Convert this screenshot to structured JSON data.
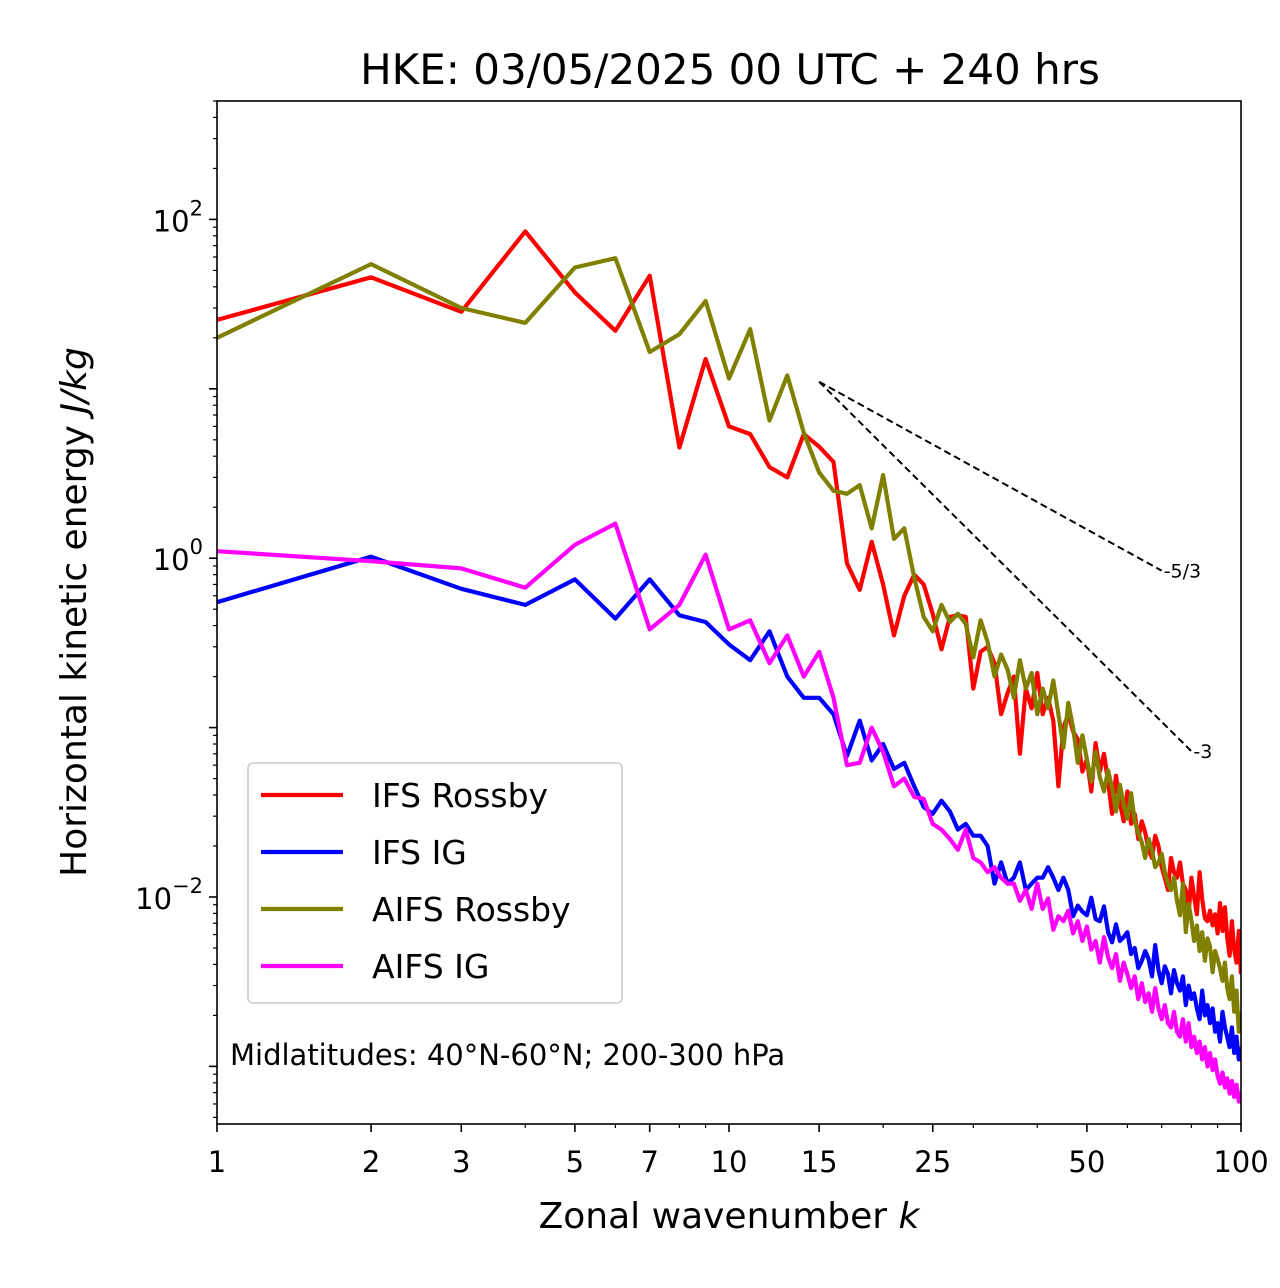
{
  "chart_data": {
    "type": "line",
    "title": "HKE: 03/05/2025 00 UTC + 240 hrs",
    "xlabel": "Zonal wavenumber k",
    "ylabel": "Horizontal kinetic energy J/kg",
    "xscale": "log",
    "yscale": "log",
    "xlim": [
      1,
      100
    ],
    "ylim": [
      0.000457,
      500
    ],
    "x_ticks": [
      1,
      2,
      3,
      5,
      7,
      10,
      15,
      25,
      50,
      100
    ],
    "x_tick_labels": [
      "1",
      "2",
      "3",
      "5",
      "7",
      "10",
      "15",
      "25",
      "50",
      "100"
    ],
    "y_ticks": [
      0.01,
      1,
      100
    ],
    "y_tick_labels": [
      {
        "base": "10",
        "exp": "−2"
      },
      {
        "base": "10",
        "exp": "0"
      },
      {
        "base": "10",
        "exp": "2"
      }
    ],
    "annotation": "Midlatitudes: 40°N-60°N; 200-300 hPa",
    "legend_position": "lower-left",
    "grid": false,
    "reference_lines": [
      {
        "label": "-5/3",
        "slope": -1.6667,
        "x_start": 15,
        "y_start": 11.0,
        "x_end": 70
      },
      {
        "label": "-3",
        "slope": -3,
        "x_start": 15,
        "y_start": 11.0,
        "x_end": 80
      }
    ],
    "series": [
      {
        "name": "IFS Rossby",
        "color": "#ff0000",
        "x": [
          1,
          2,
          3,
          4,
          5,
          6,
          7,
          8,
          9,
          10,
          11,
          12,
          13,
          14,
          15,
          16,
          17,
          18,
          19,
          20,
          21,
          22,
          23,
          24,
          25,
          26,
          27,
          28,
          29,
          30,
          31,
          32,
          33,
          34,
          35,
          36,
          37,
          38,
          39,
          40,
          41,
          42,
          43,
          44,
          45,
          46,
          47,
          48,
          49,
          50,
          51,
          52,
          53,
          54,
          55,
          56,
          57,
          58,
          59,
          60,
          61,
          62,
          63,
          64,
          65,
          66,
          67,
          68,
          69,
          70,
          71,
          72,
          73,
          74,
          75,
          76,
          77,
          78,
          79,
          80,
          81,
          82,
          83,
          84,
          85,
          86,
          87,
          88,
          89,
          90,
          91,
          92,
          93,
          94,
          95,
          96,
          97,
          98,
          99,
          100
        ],
        "y": [
          25.5,
          45.5,
          28.5,
          85.0,
          37.0,
          22.0,
          46.5,
          4.5,
          15.0,
          6.0,
          5.4,
          3.45,
          3.0,
          5.4,
          4.55,
          3.7,
          0.93,
          0.65,
          1.25,
          0.7,
          0.35,
          0.6,
          0.8,
          0.7,
          0.47,
          0.29,
          0.45,
          0.46,
          0.45,
          0.17,
          0.28,
          0.3,
          0.24,
          0.12,
          0.16,
          0.2,
          0.07,
          0.17,
          0.13,
          0.21,
          0.12,
          0.15,
          0.11,
          0.045,
          0.1,
          0.12,
          0.095,
          0.085,
          0.055,
          0.065,
          0.042,
          0.081,
          0.055,
          0.07,
          0.048,
          0.031,
          0.052,
          0.036,
          0.028,
          0.042,
          0.027,
          0.031,
          0.022,
          0.028,
          0.024,
          0.019,
          0.017,
          0.023,
          0.02,
          0.015,
          0.013,
          0.011,
          0.017,
          0.014,
          0.013,
          0.016,
          0.012,
          0.011,
          0.008,
          0.013,
          0.01,
          0.0079,
          0.014,
          0.0097,
          0.0075,
          0.0072,
          0.0083,
          0.0068,
          0.0079,
          0.0061,
          0.0092,
          0.0063,
          0.0087,
          0.0058,
          0.0045,
          0.0072,
          0.0049,
          0.0041,
          0.0063,
          0.0035
        ]
      },
      {
        "name": "IFS IG",
        "color": "#0000ff",
        "x": [
          1,
          2,
          3,
          4,
          5,
          6,
          7,
          8,
          9,
          10,
          11,
          12,
          13,
          14,
          15,
          16,
          17,
          18,
          19,
          20,
          21,
          22,
          23,
          24,
          25,
          26,
          27,
          28,
          29,
          30,
          31,
          32,
          33,
          34,
          35,
          36,
          37,
          38,
          39,
          40,
          41,
          42,
          43,
          44,
          45,
          46,
          47,
          48,
          49,
          50,
          51,
          52,
          53,
          54,
          55,
          56,
          57,
          58,
          59,
          60,
          61,
          62,
          63,
          64,
          65,
          66,
          67,
          68,
          69,
          70,
          71,
          72,
          73,
          74,
          75,
          76,
          77,
          78,
          79,
          80,
          81,
          82,
          83,
          84,
          85,
          86,
          87,
          88,
          89,
          90,
          91,
          92,
          93,
          94,
          95,
          96,
          97,
          98,
          99,
          100
        ],
        "y": [
          0.55,
          1.02,
          0.66,
          0.53,
          0.75,
          0.44,
          0.75,
          0.46,
          0.42,
          0.31,
          0.25,
          0.37,
          0.2,
          0.15,
          0.15,
          0.12,
          0.068,
          0.11,
          0.064,
          0.08,
          0.057,
          0.062,
          0.045,
          0.034,
          0.031,
          0.037,
          0.032,
          0.025,
          0.027,
          0.023,
          0.023,
          0.02,
          0.012,
          0.016,
          0.012,
          0.013,
          0.016,
          0.011,
          0.012,
          0.013,
          0.013,
          0.015,
          0.013,
          0.011,
          0.013,
          0.011,
          0.0077,
          0.0089,
          0.0082,
          0.0078,
          0.0099,
          0.0074,
          0.0072,
          0.0088,
          0.0062,
          0.0054,
          0.0069,
          0.0055,
          0.0058,
          0.0062,
          0.0046,
          0.005,
          0.0038,
          0.0042,
          0.0048,
          0.0043,
          0.0034,
          0.0052,
          0.0037,
          0.0031,
          0.0039,
          0.0035,
          0.0027,
          0.0037,
          0.0031,
          0.0028,
          0.0034,
          0.0023,
          0.003,
          0.0025,
          0.0027,
          0.0022,
          0.0019,
          0.0028,
          0.002,
          0.0023,
          0.0018,
          0.0022,
          0.0016,
          0.0018,
          0.0014,
          0.0021,
          0.0017,
          0.0015,
          0.0013,
          0.0017,
          0.0012,
          0.0015,
          0.0011,
          0.0013
        ]
      },
      {
        "name": "AIFS Rossby",
        "color": "#808000",
        "x": [
          1,
          2,
          3,
          4,
          5,
          6,
          7,
          8,
          9,
          10,
          11,
          12,
          13,
          14,
          15,
          16,
          17,
          18,
          19,
          20,
          21,
          22,
          23,
          24,
          25,
          26,
          27,
          28,
          29,
          30,
          31,
          32,
          33,
          34,
          35,
          36,
          37,
          38,
          39,
          40,
          41,
          42,
          43,
          44,
          45,
          46,
          47,
          48,
          49,
          50,
          51,
          52,
          53,
          54,
          55,
          56,
          57,
          58,
          59,
          60,
          61,
          62,
          63,
          64,
          65,
          66,
          67,
          68,
          69,
          70,
          71,
          72,
          73,
          74,
          75,
          76,
          77,
          78,
          79,
          80,
          81,
          82,
          83,
          84,
          85,
          86,
          87,
          88,
          89,
          90,
          91,
          92,
          93,
          94,
          95,
          96,
          97,
          98,
          99,
          100
        ],
        "y": [
          20.0,
          54.5,
          30.0,
          24.5,
          52.0,
          59.0,
          16.5,
          21.0,
          33.0,
          11.5,
          22.5,
          6.5,
          12.0,
          5.5,
          3.2,
          2.5,
          2.4,
          2.7,
          1.5,
          3.1,
          1.3,
          1.5,
          0.77,
          0.45,
          0.37,
          0.53,
          0.42,
          0.47,
          0.41,
          0.26,
          0.43,
          0.32,
          0.2,
          0.27,
          0.22,
          0.15,
          0.25,
          0.17,
          0.21,
          0.12,
          0.17,
          0.13,
          0.19,
          0.12,
          0.076,
          0.14,
          0.1,
          0.062,
          0.09,
          0.065,
          0.048,
          0.072,
          0.051,
          0.042,
          0.056,
          0.044,
          0.032,
          0.046,
          0.035,
          0.029,
          0.041,
          0.028,
          0.024,
          0.021,
          0.017,
          0.022,
          0.019,
          0.015,
          0.016,
          0.018,
          0.014,
          0.012,
          0.011,
          0.013,
          0.0095,
          0.0078,
          0.012,
          0.0062,
          0.0091,
          0.0073,
          0.0055,
          0.0068,
          0.0048,
          0.0062,
          0.0042,
          0.0057,
          0.0051,
          0.0036,
          0.0048,
          0.0043,
          0.0038,
          0.0032,
          0.0041,
          0.0029,
          0.0025,
          0.0034,
          0.0021,
          0.0028,
          0.0016,
          0.0021
        ]
      },
      {
        "name": "AIFS IG",
        "color": "#ff00ff",
        "x": [
          1,
          2,
          3,
          4,
          5,
          6,
          7,
          8,
          9,
          10,
          11,
          12,
          13,
          14,
          15,
          16,
          17,
          18,
          19,
          20,
          21,
          22,
          23,
          24,
          25,
          26,
          27,
          28,
          29,
          30,
          31,
          32,
          33,
          34,
          35,
          36,
          37,
          38,
          39,
          40,
          41,
          42,
          43,
          44,
          45,
          46,
          47,
          48,
          49,
          50,
          51,
          52,
          53,
          54,
          55,
          56,
          57,
          58,
          59,
          60,
          61,
          62,
          63,
          64,
          65,
          66,
          67,
          68,
          69,
          70,
          71,
          72,
          73,
          74,
          75,
          76,
          77,
          78,
          79,
          80,
          81,
          82,
          83,
          84,
          85,
          86,
          87,
          88,
          89,
          90,
          91,
          92,
          93,
          94,
          95,
          96,
          97,
          98,
          99,
          100
        ],
        "y": [
          1.1,
          0.96,
          0.87,
          0.67,
          1.2,
          1.6,
          0.38,
          0.53,
          1.05,
          0.38,
          0.43,
          0.24,
          0.35,
          0.2,
          0.28,
          0.15,
          0.06,
          0.062,
          0.1,
          0.072,
          0.045,
          0.05,
          0.039,
          0.038,
          0.027,
          0.025,
          0.022,
          0.019,
          0.025,
          0.017,
          0.016,
          0.014,
          0.015,
          0.013,
          0.012,
          0.012,
          0.0095,
          0.011,
          0.0085,
          0.012,
          0.0085,
          0.0098,
          0.0064,
          0.0077,
          0.0072,
          0.0083,
          0.0061,
          0.0072,
          0.0055,
          0.0067,
          0.0049,
          0.0055,
          0.0041,
          0.0058,
          0.0044,
          0.0038,
          0.0046,
          0.0032,
          0.0041,
          0.0035,
          0.0029,
          0.0034,
          0.0025,
          0.0031,
          0.0024,
          0.0027,
          0.0021,
          0.0029,
          0.0022,
          0.0019,
          0.0023,
          0.0018,
          0.0017,
          0.0021,
          0.0016,
          0.0015,
          0.0019,
          0.0014,
          0.0018,
          0.0013,
          0.0015,
          0.0012,
          0.0014,
          0.0011,
          0.0013,
          0.001,
          0.0012,
          0.00095,
          0.0011,
          0.00088,
          0.00079,
          0.00092,
          0.00075,
          0.00085,
          0.00069,
          0.00082,
          0.00066,
          0.00078,
          0.00062,
          0.00071
        ]
      }
    ]
  }
}
